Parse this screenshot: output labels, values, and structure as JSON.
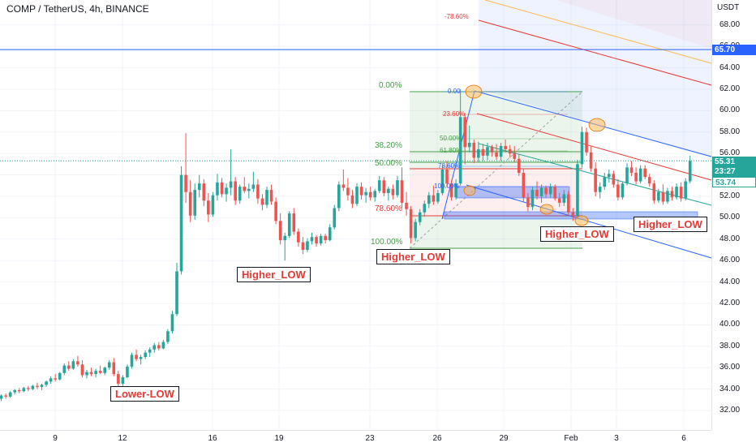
{
  "header": {
    "title": "COMP / TetherUS, 4h, BINANCE"
  },
  "price_axis": {
    "currency": "USDT",
    "ticks": [
      "68.00",
      "66.00",
      "64.00",
      "62.00",
      "60.00",
      "58.00",
      "56.00",
      "54.00",
      "52.00",
      "50.00",
      "48.00",
      "46.00",
      "44.00",
      "42.00",
      "40.00",
      "38.00",
      "36.00",
      "34.00",
      "32.00"
    ],
    "tags": {
      "resistance": "65.70",
      "last_price": "55.31",
      "countdown": "23:27",
      "prev_close": "53.74"
    }
  },
  "time_axis": {
    "ticks": [
      "9",
      "12",
      "16",
      "19",
      "23",
      "26",
      "29",
      "Feb",
      "3",
      "6"
    ]
  },
  "annotations": {
    "lower_low": "Lower-LOW",
    "higher_low_1": "Higher_LOW",
    "higher_low_2": "Higher_LOW",
    "higher_low_3": "Higher_LOW",
    "higher_low_4": "Higher_LOW"
  },
  "fib_large": {
    "levels": [
      "0.00%",
      "38.20%",
      "50.00%",
      "78.60%",
      "100.00%"
    ]
  },
  "fib_small": {
    "levels": [
      "0.00",
      "23.60%",
      "50.00%",
      "61.80%",
      "78.60%",
      "100.00%"
    ],
    "top_extension": "-78.60%"
  },
  "colors": {
    "up": "#26a69a",
    "down": "#ef5350",
    "resistance": "#2962ff",
    "channel": "#2962ff",
    "fib_red": "#e53935",
    "fib_green": "#43a047"
  },
  "chart_data": {
    "type": "candlestick",
    "symbol": "COMP / TetherUS",
    "timeframe": "4h",
    "exchange": "BINANCE",
    "ylim": [
      31,
      69.5
    ],
    "x_ticks": [
      "9",
      "12",
      "16",
      "19",
      "23",
      "26",
      "29",
      "Feb",
      "3",
      "6"
    ],
    "horizontal_lines": [
      {
        "name": "resistance",
        "value": 65.7
      }
    ],
    "last_price": 55.31,
    "ohlc": [
      [
        33.0,
        33.3,
        32.6,
        33.1
      ],
      [
        33.1,
        33.5,
        32.9,
        33.4
      ],
      [
        33.4,
        33.6,
        33.1,
        33.3
      ],
      [
        33.3,
        33.8,
        33.2,
        33.7
      ],
      [
        33.7,
        34.0,
        33.5,
        33.9
      ],
      [
        33.9,
        34.1,
        33.6,
        33.8
      ],
      [
        33.8,
        34.2,
        33.7,
        34.1
      ],
      [
        34.1,
        34.3,
        33.8,
        34.0
      ],
      [
        34.0,
        34.4,
        33.9,
        34.3
      ],
      [
        34.3,
        34.6,
        34.0,
        34.2
      ],
      [
        34.2,
        34.5,
        33.9,
        34.4
      ],
      [
        34.4,
        34.8,
        34.2,
        34.7
      ],
      [
        34.7,
        35.2,
        34.5,
        35.0
      ],
      [
        35.0,
        35.4,
        34.7,
        34.9
      ],
      [
        34.9,
        35.6,
        34.8,
        35.5
      ],
      [
        35.5,
        36.4,
        35.3,
        36.2
      ],
      [
        36.2,
        36.6,
        35.7,
        35.9
      ],
      [
        35.9,
        36.8,
        35.8,
        36.6
      ],
      [
        36.6,
        37.1,
        36.1,
        36.3
      ],
      [
        36.3,
        36.7,
        35.1,
        35.3
      ],
      [
        35.3,
        35.8,
        35.0,
        35.6
      ],
      [
        35.6,
        36.0,
        35.2,
        35.4
      ],
      [
        35.4,
        35.9,
        35.1,
        35.7
      ],
      [
        35.7,
        36.2,
        35.4,
        35.5
      ],
      [
        35.5,
        36.1,
        35.3,
        36.0
      ],
      [
        36.0,
        36.7,
        35.8,
        36.5
      ],
      [
        36.5,
        36.9,
        35.2,
        35.4
      ],
      [
        35.4,
        35.7,
        34.2,
        34.5
      ],
      [
        34.5,
        35.3,
        34.3,
        35.1
      ],
      [
        35.1,
        36.3,
        35.0,
        36.1
      ],
      [
        36.1,
        37.4,
        35.9,
        37.2
      ],
      [
        37.2,
        37.7,
        36.6,
        36.8
      ],
      [
        36.8,
        37.2,
        36.3,
        37.0
      ],
      [
        37.0,
        37.6,
        36.8,
        37.4
      ],
      [
        37.4,
        37.9,
        37.0,
        37.7
      ],
      [
        37.7,
        38.3,
        37.4,
        38.1
      ],
      [
        38.1,
        38.4,
        37.6,
        37.8
      ],
      [
        37.8,
        38.6,
        37.7,
        38.4
      ],
      [
        38.4,
        39.6,
        38.2,
        39.4
      ],
      [
        39.4,
        41.3,
        39.2,
        41.0
      ],
      [
        41.0,
        45.8,
        40.8,
        45.0
      ],
      [
        45.0,
        54.8,
        44.7,
        54.0
      ],
      [
        54.0,
        57.9,
        51.4,
        52.4
      ],
      [
        52.4,
        53.5,
        49.6,
        50.2
      ],
      [
        50.2,
        53.2,
        49.8,
        52.6
      ],
      [
        52.6,
        54.0,
        51.9,
        53.2
      ],
      [
        53.2,
        53.6,
        51.1,
        51.6
      ],
      [
        51.6,
        52.3,
        49.6,
        50.3
      ],
      [
        50.3,
        52.4,
        50.1,
        52.1
      ],
      [
        52.1,
        54.1,
        51.6,
        53.3
      ],
      [
        53.3,
        53.7,
        51.9,
        52.2
      ],
      [
        52.2,
        53.2,
        51.5,
        52.8
      ],
      [
        52.8,
        56.4,
        52.1,
        53.4
      ],
      [
        53.4,
        53.8,
        51.2,
        51.6
      ],
      [
        51.6,
        53.1,
        51.3,
        52.9
      ],
      [
        52.9,
        53.8,
        52.3,
        52.5
      ],
      [
        52.5,
        53.2,
        51.8,
        52.7
      ],
      [
        52.7,
        54.3,
        52.4,
        53.1
      ],
      [
        53.1,
        53.6,
        51.3,
        51.8
      ],
      [
        51.8,
        52.2,
        50.7,
        51.2
      ],
      [
        51.2,
        52.9,
        50.9,
        52.6
      ],
      [
        52.6,
        53.1,
        51.2,
        51.5
      ],
      [
        51.5,
        51.9,
        49.4,
        49.7
      ],
      [
        49.7,
        50.4,
        47.5,
        47.9
      ],
      [
        47.9,
        48.6,
        46.0,
        48.3
      ],
      [
        48.3,
        50.6,
        48.1,
        50.4
      ],
      [
        50.4,
        50.9,
        48.4,
        48.7
      ],
      [
        48.7,
        49.0,
        47.3,
        47.7
      ],
      [
        47.7,
        48.2,
        46.6,
        47.0
      ],
      [
        47.0,
        48.1,
        46.8,
        47.8
      ],
      [
        47.8,
        48.6,
        47.5,
        48.2
      ],
      [
        48.2,
        48.4,
        47.3,
        47.6
      ],
      [
        47.6,
        48.5,
        47.4,
        48.3
      ],
      [
        48.3,
        48.5,
        47.6,
        47.9
      ],
      [
        47.9,
        49.4,
        47.8,
        49.1
      ],
      [
        49.1,
        51.2,
        48.9,
        50.9
      ],
      [
        50.9,
        53.4,
        50.6,
        53.1
      ],
      [
        53.1,
        54.5,
        52.5,
        52.8
      ],
      [
        52.8,
        53.7,
        51.6,
        52.1
      ],
      [
        52.1,
        52.6,
        50.9,
        51.3
      ],
      [
        51.3,
        53.2,
        51.1,
        52.9
      ],
      [
        52.9,
        53.3,
        51.7,
        52.1
      ],
      [
        52.1,
        52.8,
        51.4,
        52.4
      ],
      [
        52.4,
        52.9,
        51.6,
        51.9
      ],
      [
        51.9,
        52.7,
        51.5,
        52.5
      ],
      [
        52.5,
        53.9,
        52.3,
        53.5
      ],
      [
        53.5,
        53.8,
        52.0,
        52.3
      ],
      [
        52.3,
        52.9,
        51.6,
        52.7
      ],
      [
        52.7,
        53.1,
        51.7,
        52.1
      ],
      [
        52.1,
        53.9,
        51.9,
        53.5
      ],
      [
        53.5,
        54.7,
        50.9,
        51.4
      ],
      [
        51.4,
        52.4,
        50.2,
        50.8
      ],
      [
        50.8,
        51.1,
        47.6,
        48.1
      ],
      [
        48.1,
        49.9,
        47.8,
        49.6
      ],
      [
        49.6,
        50.8,
        49.3,
        50.5
      ],
      [
        50.5,
        51.6,
        50.1,
        51.3
      ],
      [
        51.3,
        52.4,
        50.9,
        52.1
      ],
      [
        52.1,
        53.0,
        51.2,
        51.5
      ],
      [
        51.5,
        52.6,
        51.3,
        52.3
      ],
      [
        52.3,
        54.9,
        52.1,
        54.5
      ],
      [
        54.5,
        55.3,
        52.9,
        53.2
      ],
      [
        53.2,
        53.5,
        51.6,
        51.9
      ],
      [
        51.9,
        53.6,
        51.7,
        53.2
      ],
      [
        53.2,
        62.0,
        53.0,
        59.4
      ],
      [
        59.4,
        59.8,
        55.0,
        56.6
      ],
      [
        56.6,
        58.6,
        56.1,
        57.0
      ],
      [
        57.0,
        57.3,
        55.1,
        55.6
      ],
      [
        55.6,
        57.1,
        55.2,
        56.4
      ],
      [
        56.4,
        56.9,
        55.3,
        55.8
      ],
      [
        55.8,
        57.0,
        55.4,
        56.6
      ],
      [
        56.6,
        56.8,
        55.7,
        56.1
      ],
      [
        56.1,
        56.9,
        55.4,
        55.7
      ],
      [
        55.7,
        57.0,
        55.3,
        56.7
      ],
      [
        56.7,
        57.3,
        56.1,
        56.4
      ],
      [
        56.4,
        56.8,
        55.6,
        56.0
      ],
      [
        56.0,
        56.7,
        55.2,
        55.5
      ],
      [
        55.5,
        55.9,
        53.9,
        54.2
      ],
      [
        54.2,
        54.6,
        51.5,
        51.9
      ],
      [
        51.9,
        52.3,
        50.6,
        51.0
      ],
      [
        51.0,
        52.9,
        50.7,
        52.6
      ],
      [
        52.6,
        53.4,
        51.7,
        52.0
      ],
      [
        52.0,
        53.1,
        51.4,
        52.8
      ],
      [
        52.8,
        53.0,
        51.9,
        52.2
      ],
      [
        52.2,
        53.2,
        51.9,
        52.9
      ],
      [
        52.9,
        53.1,
        51.6,
        51.8
      ],
      [
        51.8,
        52.3,
        51.0,
        51.4
      ],
      [
        51.4,
        52.6,
        51.1,
        52.2
      ],
      [
        52.2,
        52.5,
        50.2,
        50.5
      ],
      [
        50.5,
        50.9,
        49.7,
        50.2
      ],
      [
        50.2,
        55.4,
        50.0,
        55.0
      ],
      [
        55.0,
        58.5,
        54.7,
        58.0
      ],
      [
        58.0,
        58.4,
        55.8,
        56.1
      ],
      [
        56.1,
        56.7,
        54.3,
        54.6
      ],
      [
        54.6,
        55.2,
        52.0,
        52.4
      ],
      [
        52.4,
        53.3,
        51.8,
        52.9
      ],
      [
        52.9,
        54.2,
        52.6,
        53.8
      ],
      [
        53.8,
        54.5,
        53.3,
        54.1
      ],
      [
        54.1,
        54.4,
        52.8,
        53.1
      ],
      [
        53.1,
        53.6,
        51.6,
        51.9
      ],
      [
        51.9,
        53.4,
        51.7,
        53.2
      ],
      [
        53.2,
        55.1,
        53.0,
        54.7
      ],
      [
        54.7,
        55.3,
        53.9,
        54.2
      ],
      [
        54.2,
        54.7,
        53.1,
        53.4
      ],
      [
        53.4,
        54.9,
        53.2,
        54.6
      ],
      [
        54.6,
        54.9,
        53.6,
        53.8
      ],
      [
        53.8,
        54.1,
        52.9,
        53.2
      ],
      [
        53.2,
        53.5,
        51.3,
        51.6
      ],
      [
        51.6,
        52.7,
        51.4,
        52.4
      ],
      [
        52.4,
        53.1,
        51.2,
        51.5
      ],
      [
        51.5,
        52.8,
        51.3,
        52.5
      ],
      [
        52.5,
        52.9,
        51.6,
        51.9
      ],
      [
        51.9,
        53.2,
        51.7,
        52.9
      ],
      [
        52.9,
        53.3,
        51.5,
        51.8
      ],
      [
        51.8,
        53.7,
        51.6,
        53.4
      ],
      [
        53.4,
        55.8,
        53.2,
        55.3
      ]
    ]
  }
}
